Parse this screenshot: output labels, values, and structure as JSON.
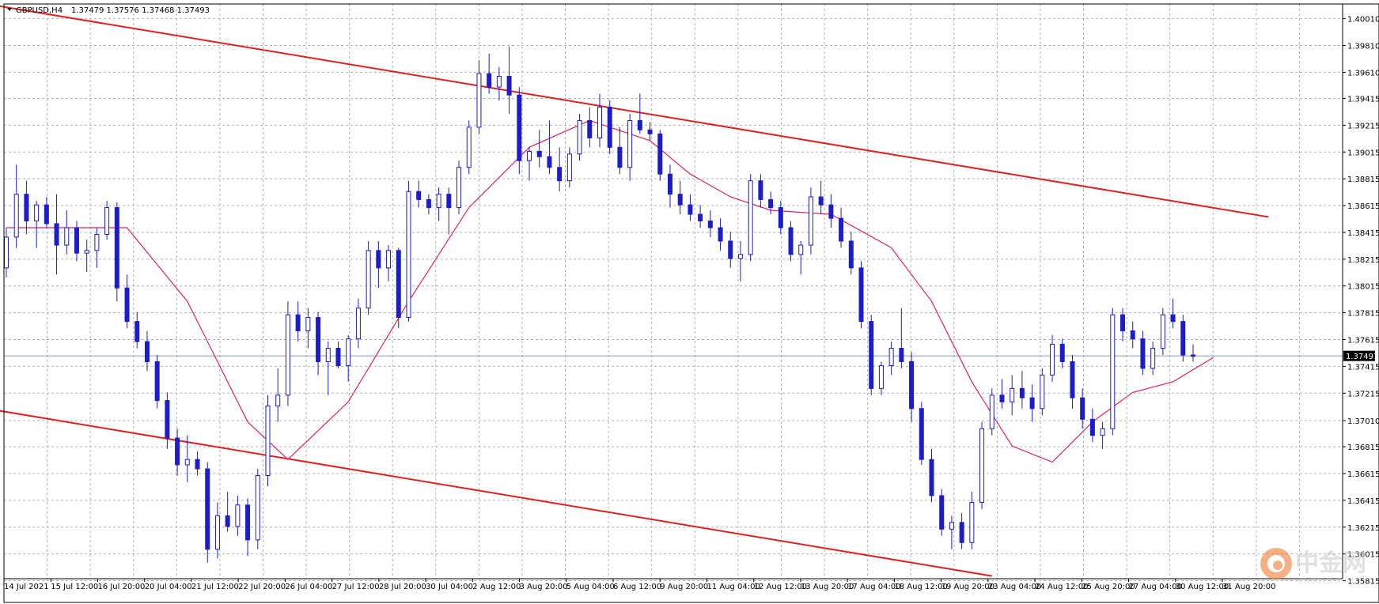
{
  "header": {
    "symbol": "GBPUSD",
    "timeframe": "H4",
    "symbol_label": "GBPUSD,H4",
    "ohlc": "1.37479 1.37576 1.37468 1.37493"
  },
  "current_price_label": "1.37493",
  "watermark": {
    "cn_name": "中金网",
    "site": "CNGOLD.COM"
  },
  "colors": {
    "background": "#ffffff",
    "grid": "#aab4c0",
    "candle": "#1c1cc8",
    "moving_average": "#e0245e",
    "channel": "#e02020",
    "bid_line": "#8a9bb0",
    "price_box": "#000000"
  },
  "chart_data": {
    "type": "candlestick",
    "title": "GBPUSD,H4",
    "grid": true,
    "ylim": [
      1.3583,
      1.4012
    ],
    "y_tick_labels": [
      "1.40010",
      "1.39810",
      "1.39610",
      "1.39415",
      "1.39215",
      "1.39015",
      "1.38815",
      "1.38615",
      "1.38415",
      "1.38215",
      "1.38015",
      "1.37815",
      "1.37615",
      "1.37415",
      "1.37215",
      "1.37010",
      "1.36815",
      "1.36615",
      "1.36415",
      "1.36215",
      "1.36015",
      "1.35815"
    ],
    "x_tick_labels": [
      "14 Jul 2021",
      "15 Jul 12:00",
      "16 Jul 20:00",
      "20 Jul 04:00",
      "21 Jul 12:00",
      "22 Jul 20:00",
      "26 Jul 04:00",
      "27 Jul 12:00",
      "28 Jul 20:00",
      "30 Jul 04:00",
      "2 Aug 12:00",
      "3 Aug 20:00",
      "5 Aug 04:00",
      "6 Aug 12:00",
      "9 Aug 20:00",
      "11 Aug 04:00",
      "12 Aug 12:00",
      "13 Aug 20:00",
      "17 Aug 04:00",
      "18 Aug 12:00",
      "19 Aug 20:00",
      "23 Aug 04:00",
      "24 Aug 12:00",
      "25 Aug 20:00",
      "27 Aug 04:00",
      "30 Aug 12:00",
      "31 Aug 20:00"
    ],
    "current_price": 1.37493,
    "candles_ohlc": [
      [
        1.3815,
        1.3845,
        1.3808,
        1.3838
      ],
      [
        1.3838,
        1.3892,
        1.383,
        1.387
      ],
      [
        1.387,
        1.388,
        1.384,
        1.385
      ],
      [
        1.385,
        1.3865,
        1.383,
        1.3862
      ],
      [
        1.3862,
        1.3868,
        1.3845,
        1.3848
      ],
      [
        1.3848,
        1.387,
        1.381,
        1.3832
      ],
      [
        1.3832,
        1.3858,
        1.3825,
        1.3845
      ],
      [
        1.3845,
        1.385,
        1.382,
        1.3826
      ],
      [
        1.3826,
        1.3836,
        1.3812,
        1.3828
      ],
      [
        1.3828,
        1.3845,
        1.3815,
        1.384
      ],
      [
        1.384,
        1.3865,
        1.3836,
        1.386
      ],
      [
        1.386,
        1.3864,
        1.379,
        1.38
      ],
      [
        1.38,
        1.381,
        1.377,
        1.3775
      ],
      [
        1.3775,
        1.3782,
        1.3755,
        1.376
      ],
      [
        1.376,
        1.3768,
        1.3738,
        1.3745
      ],
      [
        1.3745,
        1.375,
        1.371,
        1.3716
      ],
      [
        1.3716,
        1.3722,
        1.368,
        1.3688
      ],
      [
        1.3688,
        1.3695,
        1.366,
        1.3668
      ],
      [
        1.3668,
        1.369,
        1.3655,
        1.3672
      ],
      [
        1.3672,
        1.3678,
        1.366,
        1.3665
      ],
      [
        1.3665,
        1.367,
        1.3595,
        1.3605
      ],
      [
        1.3605,
        1.364,
        1.3598,
        1.363
      ],
      [
        1.363,
        1.3648,
        1.3618,
        1.3622
      ],
      [
        1.3622,
        1.3645,
        1.3615,
        1.3638
      ],
      [
        1.3638,
        1.3643,
        1.36,
        1.3612
      ],
      [
        1.3612,
        1.3665,
        1.3605,
        1.366
      ],
      [
        1.366,
        1.372,
        1.3652,
        1.3712
      ],
      [
        1.3712,
        1.374,
        1.37,
        1.372
      ],
      [
        1.372,
        1.379,
        1.3712,
        1.378
      ],
      [
        1.378,
        1.379,
        1.376,
        1.3768
      ],
      [
        1.3768,
        1.3785,
        1.3755,
        1.3778
      ],
      [
        1.3778,
        1.3782,
        1.3735,
        1.3745
      ],
      [
        1.3745,
        1.376,
        1.372,
        1.3755
      ],
      [
        1.3755,
        1.376,
        1.374,
        1.3742
      ],
      [
        1.3742,
        1.3765,
        1.373,
        1.3762
      ],
      [
        1.3762,
        1.3792,
        1.3755,
        1.3785
      ],
      [
        1.3785,
        1.3835,
        1.378,
        1.3828
      ],
      [
        1.3828,
        1.3835,
        1.38,
        1.3815
      ],
      [
        1.3815,
        1.3832,
        1.3805,
        1.3828
      ],
      [
        1.3828,
        1.383,
        1.377,
        1.3778
      ],
      [
        1.3778,
        1.388,
        1.3775,
        1.3872
      ],
      [
        1.3872,
        1.388,
        1.386,
        1.3866
      ],
      [
        1.3866,
        1.387,
        1.3855,
        1.386
      ],
      [
        1.386,
        1.3875,
        1.385,
        1.387
      ],
      [
        1.387,
        1.3875,
        1.384,
        1.386
      ],
      [
        1.386,
        1.3895,
        1.3855,
        1.389
      ],
      [
        1.389,
        1.3925,
        1.3885,
        1.392
      ],
      [
        1.392,
        1.397,
        1.3915,
        1.396
      ],
      [
        1.396,
        1.3975,
        1.3945,
        1.395
      ],
      [
        1.395,
        1.3965,
        1.394,
        1.3958
      ],
      [
        1.3958,
        1.398,
        1.393,
        1.3944
      ],
      [
        1.3944,
        1.395,
        1.3885,
        1.3895
      ],
      [
        1.3895,
        1.3905,
        1.388,
        1.3902
      ],
      [
        1.3902,
        1.3918,
        1.389,
        1.3898
      ],
      [
        1.3898,
        1.3925,
        1.3885,
        1.389
      ],
      [
        1.389,
        1.3905,
        1.3872,
        1.388
      ],
      [
        1.388,
        1.3905,
        1.3875,
        1.39
      ],
      [
        1.39,
        1.393,
        1.3895,
        1.3925
      ],
      [
        1.3925,
        1.3935,
        1.3905,
        1.3912
      ],
      [
        1.3912,
        1.3945,
        1.3905,
        1.3935
      ],
      [
        1.3935,
        1.394,
        1.39,
        1.3905
      ],
      [
        1.3905,
        1.392,
        1.3885,
        1.389
      ],
      [
        1.389,
        1.393,
        1.388,
        1.3925
      ],
      [
        1.3925,
        1.3945,
        1.3915,
        1.3918
      ],
      [
        1.3918,
        1.3924,
        1.391,
        1.3915
      ],
      [
        1.3915,
        1.3918,
        1.388,
        1.3885
      ],
      [
        1.3885,
        1.3892,
        1.386,
        1.387
      ],
      [
        1.387,
        1.388,
        1.3855,
        1.3862
      ],
      [
        1.3862,
        1.387,
        1.385,
        1.3855
      ],
      [
        1.3855,
        1.3862,
        1.3845,
        1.385
      ],
      [
        1.385,
        1.3858,
        1.3838,
        1.3845
      ],
      [
        1.3845,
        1.3852,
        1.3828,
        1.3835
      ],
      [
        1.3835,
        1.3842,
        1.3815,
        1.3822
      ],
      [
        1.3822,
        1.3835,
        1.3805,
        1.3825
      ],
      [
        1.3825,
        1.3885,
        1.382,
        1.388
      ],
      [
        1.388,
        1.3885,
        1.386,
        1.3866
      ],
      [
        1.3866,
        1.3872,
        1.3855,
        1.386
      ],
      [
        1.386,
        1.3865,
        1.384,
        1.3845
      ],
      [
        1.3845,
        1.385,
        1.382,
        1.3825
      ],
      [
        1.3825,
        1.3835,
        1.381,
        1.3832
      ],
      [
        1.3832,
        1.3875,
        1.3825,
        1.3868
      ],
      [
        1.3868,
        1.388,
        1.3855,
        1.3862
      ],
      [
        1.3862,
        1.387,
        1.3845,
        1.3852
      ],
      [
        1.3852,
        1.386,
        1.383,
        1.3835
      ],
      [
        1.3835,
        1.3842,
        1.381,
        1.3815
      ],
      [
        1.3815,
        1.382,
        1.377,
        1.3775
      ],
      [
        1.3775,
        1.378,
        1.372,
        1.3725
      ],
      [
        1.3725,
        1.3745,
        1.372,
        1.3742
      ],
      [
        1.3742,
        1.376,
        1.3735,
        1.3755
      ],
      [
        1.3755,
        1.3785,
        1.374,
        1.3745
      ],
      [
        1.3745,
        1.3752,
        1.37,
        1.371
      ],
      [
        1.371,
        1.3715,
        1.3668,
        1.3672
      ],
      [
        1.3672,
        1.368,
        1.364,
        1.3645
      ],
      [
        1.3645,
        1.365,
        1.3615,
        1.362
      ],
      [
        1.362,
        1.363,
        1.3605,
        1.3625
      ],
      [
        1.3625,
        1.3632,
        1.3605,
        1.361
      ],
      [
        1.361,
        1.3648,
        1.3605,
        1.364
      ],
      [
        1.364,
        1.37,
        1.3635,
        1.3695
      ],
      [
        1.3695,
        1.3725,
        1.369,
        1.372
      ],
      [
        1.372,
        1.3732,
        1.371,
        1.3715
      ],
      [
        1.3715,
        1.3735,
        1.3705,
        1.3725
      ],
      [
        1.3725,
        1.3738,
        1.371,
        1.3718
      ],
      [
        1.3718,
        1.3728,
        1.37,
        1.371
      ],
      [
        1.371,
        1.374,
        1.3705,
        1.3735
      ],
      [
        1.3735,
        1.3765,
        1.373,
        1.3758
      ],
      [
        1.3758,
        1.3762,
        1.374,
        1.3745
      ],
      [
        1.3745,
        1.375,
        1.371,
        1.3718
      ],
      [
        1.3718,
        1.3725,
        1.3695,
        1.3702
      ],
      [
        1.3702,
        1.371,
        1.3685,
        1.369
      ],
      [
        1.369,
        1.37,
        1.368,
        1.3695
      ],
      [
        1.3695,
        1.3785,
        1.369,
        1.378
      ],
      [
        1.378,
        1.3785,
        1.376,
        1.3768
      ],
      [
        1.3768,
        1.3775,
        1.3755,
        1.3762
      ],
      [
        1.3762,
        1.3768,
        1.3735,
        1.374
      ],
      [
        1.374,
        1.376,
        1.3735,
        1.3755
      ],
      [
        1.3755,
        1.3785,
        1.375,
        1.378
      ],
      [
        1.378,
        1.3792,
        1.377,
        1.3775
      ],
      [
        1.3775,
        1.378,
        1.3745,
        1.375
      ],
      [
        1.375,
        1.3758,
        1.3745,
        1.3749
      ]
    ],
    "moving_average": [
      [
        0,
        1.3845
      ],
      [
        12,
        1.3845
      ],
      [
        18,
        1.379
      ],
      [
        24,
        1.37
      ],
      [
        28,
        1.3672
      ],
      [
        34,
        1.3715
      ],
      [
        40,
        1.379
      ],
      [
        46,
        1.386
      ],
      [
        52,
        1.3905
      ],
      [
        58,
        1.3925
      ],
      [
        64,
        1.391
      ],
      [
        68,
        1.3885
      ],
      [
        72,
        1.3868
      ],
      [
        76,
        1.3858
      ],
      [
        82,
        1.3855
      ],
      [
        88,
        1.383
      ],
      [
        92,
        1.379
      ],
      [
        96,
        1.373
      ],
      [
        100,
        1.3682
      ],
      [
        104,
        1.367
      ],
      [
        108,
        1.37
      ],
      [
        112,
        1.3722
      ],
      [
        116,
        1.373
      ],
      [
        120,
        1.3748
      ]
    ],
    "channel_lines": [
      {
        "name": "upper",
        "from": [
          -2,
          1.4012
        ],
        "to": [
          125.5,
          1.3853
        ]
      },
      {
        "name": "lower",
        "from": [
          -2,
          1.371
        ],
        "to": [
          98,
          1.3585
        ]
      }
    ]
  }
}
